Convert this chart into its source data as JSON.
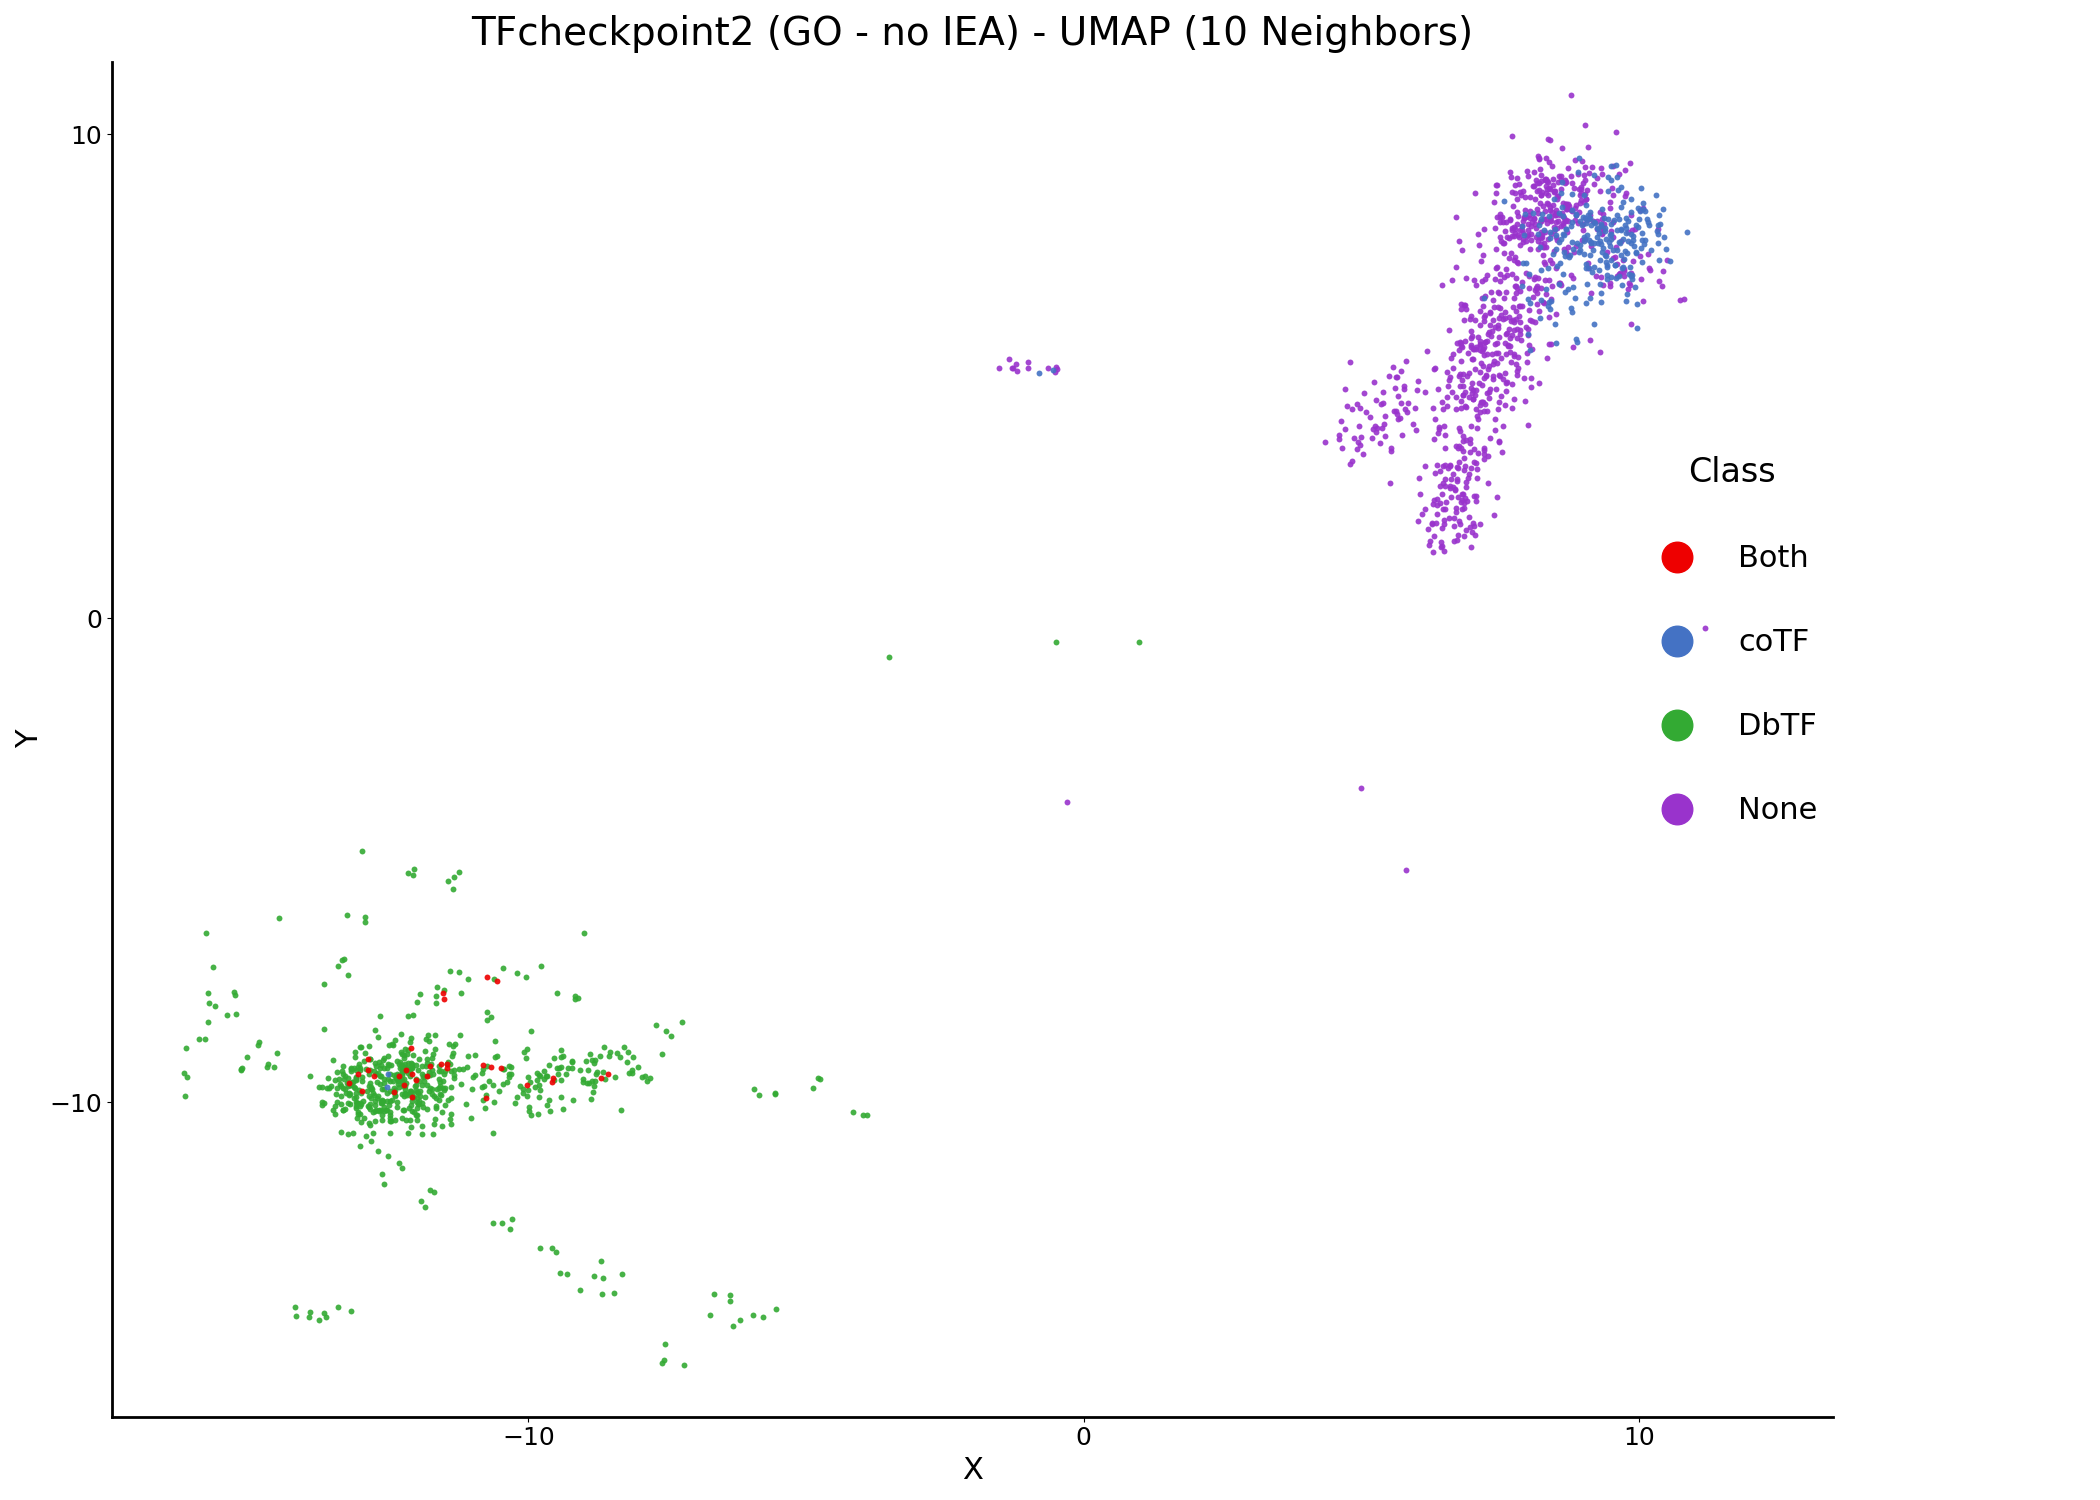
{
  "title": "TFcheckpoint2 (GO - no IEA) - UMAP (10 Neighbors)",
  "xlabel": "X",
  "ylabel": "Y",
  "xlim": [
    -17.5,
    13.5
  ],
  "ylim": [
    -16.5,
    11.5
  ],
  "xticks": [
    -10,
    0,
    10
  ],
  "yticks": [
    -10,
    0,
    10
  ],
  "classes": [
    "Both",
    "coTF",
    "DbTF",
    "None"
  ],
  "colors": {
    "Both": "#EE0000",
    "coTF": "#4472C4",
    "DbTF": "#33AA33",
    "None": "#9933CC"
  },
  "marker_size": 18,
  "background_color": "#FFFFFF",
  "title_fontsize": 28,
  "axis_label_fontsize": 22,
  "tick_fontsize": 18,
  "legend_fontsize": 22,
  "legend_title_fontsize": 24,
  "seed": 42
}
